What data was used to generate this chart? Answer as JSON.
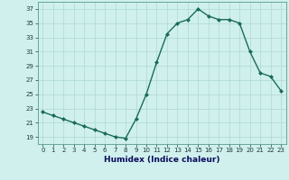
{
  "x": [
    0,
    1,
    2,
    3,
    4,
    5,
    6,
    7,
    8,
    9,
    10,
    11,
    12,
    13,
    14,
    15,
    16,
    17,
    18,
    19,
    20,
    21,
    22,
    23
  ],
  "y": [
    22.5,
    22.0,
    21.5,
    21.0,
    20.5,
    20.0,
    19.5,
    19.0,
    18.8,
    21.5,
    25.0,
    29.5,
    33.5,
    35.0,
    35.5,
    37.0,
    36.0,
    35.5,
    35.5,
    35.0,
    31.0,
    28.0,
    27.5,
    25.5
  ],
  "line_color": "#1a6b5a",
  "marker": "D",
  "marker_size": 2.0,
  "linewidth": 1.0,
  "xlabel": "Humidex (Indice chaleur)",
  "xlim": [
    -0.5,
    23.5
  ],
  "ylim": [
    18,
    38
  ],
  "yticks": [
    19,
    21,
    23,
    25,
    27,
    29,
    31,
    33,
    35,
    37
  ],
  "xticks": [
    0,
    1,
    2,
    3,
    4,
    5,
    6,
    7,
    8,
    9,
    10,
    11,
    12,
    13,
    14,
    15,
    16,
    17,
    18,
    19,
    20,
    21,
    22,
    23
  ],
  "bg_color": "#cff0ec",
  "grid_color": "#b0d8d2",
  "spine_color": "#5a9a90",
  "tick_label_color": "#1a3a3a",
  "xlabel_color": "#0a0a5a",
  "tick_fontsize": 5.0,
  "xlabel_fontsize": 6.5
}
